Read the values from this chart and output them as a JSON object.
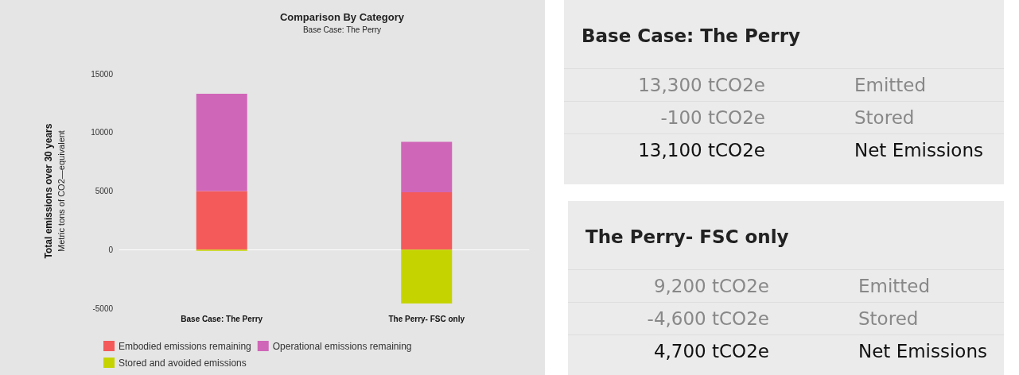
{
  "chart_data": [
    {
      "type": "bar",
      "title": "Comparison By Category",
      "subtitle": "Base Case: The Perry",
      "ylabel": "Total emissions over 30 years\nMetric tons of CO2—equivalent",
      "categories": [
        "Base Case: The Perry",
        "The Perry- FSC only"
      ],
      "stacked": true,
      "ylim": [
        -5000,
        15000
      ],
      "yticks": [
        -5000,
        0,
        5000,
        10000,
        15000
      ],
      "legend": "bottom",
      "series": [
        {
          "name": "Embodied emissions remaining",
          "color": "#f45a5a",
          "values": [
            5000,
            4900
          ]
        },
        {
          "name": "Operational emissions remaining",
          "color": "#d066b8",
          "values": [
            8300,
            4300
          ]
        },
        {
          "name": "Stored and avoided emissions",
          "color": "#c5d400",
          "values": [
            -100,
            -4600
          ]
        }
      ]
    },
    {
      "type": "other",
      "title": "Base Case: The Perry",
      "annotations": [
        "13,300 tCO2e",
        "Emitted",
        "-100 tCO2e",
        "Stored",
        "13,100 tCO2e",
        "Net Emissions"
      ]
    },
    {
      "type": "other",
      "title": "The Perry- FSC only",
      "annotations": [
        "9,200 tCO2e",
        "Emitted",
        "-4,600 tCO2e",
        "Stored",
        "4,700 tCO2e",
        "Net Emissions"
      ]
    }
  ]
}
